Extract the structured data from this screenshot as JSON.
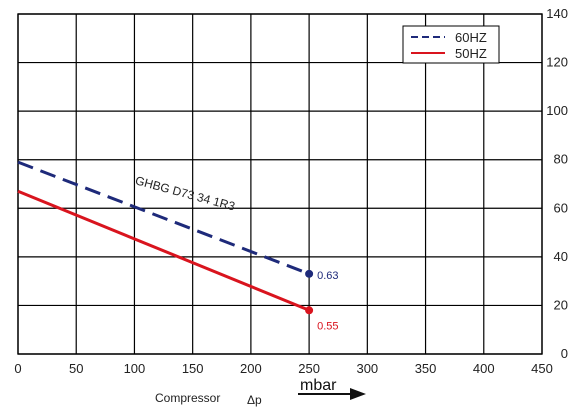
{
  "chart_data": {
    "type": "line",
    "title": "",
    "xlabel": "Compressor",
    "xlabel_symbol": "Δp",
    "unit_label": "mbar",
    "ylabel": "",
    "xlim": [
      0,
      450
    ],
    "ylim": [
      0,
      140
    ],
    "x_ticks": [
      0,
      50,
      100,
      150,
      200,
      250,
      300,
      350,
      400,
      450
    ],
    "y_ticks": [
      0,
      20,
      40,
      60,
      80,
      100,
      120,
      140
    ],
    "y_axis_side": "right",
    "grid": true,
    "legend_position": "top-right",
    "series": [
      {
        "name": "60HZ",
        "style": "dashed",
        "color": "#1e2a7a",
        "x": [
          0,
          250
        ],
        "y": [
          79,
          33
        ],
        "end_label": "0.63"
      },
      {
        "name": "50HZ",
        "style": "solid",
        "color": "#d9141e",
        "x": [
          0,
          250
        ],
        "y": [
          67,
          18
        ],
        "end_label": "0.55"
      }
    ],
    "annotations": [
      {
        "text": "GHBG D73 34 1R3",
        "x": 100,
        "y": 70,
        "angle": 15
      }
    ]
  }
}
